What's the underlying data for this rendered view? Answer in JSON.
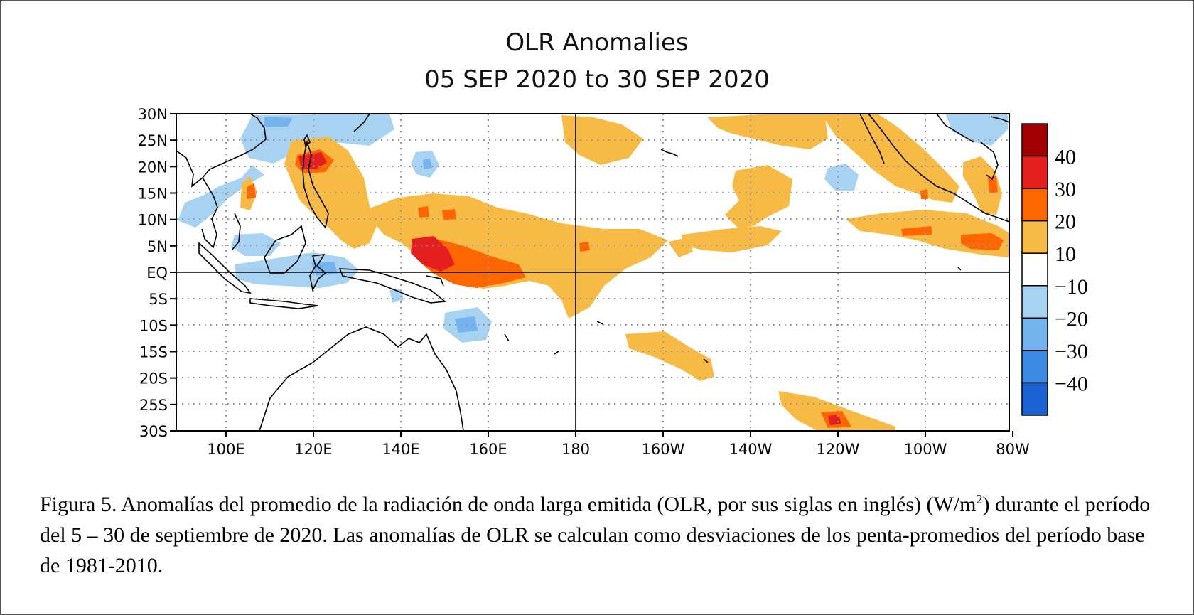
{
  "title": {
    "line1": "OLR Anomalies",
    "line2": "05 SEP 2020 to 30 SEP 2020"
  },
  "axes": {
    "lat_labels": [
      "30N",
      "25N",
      "20N",
      "15N",
      "10N",
      "5N",
      "EQ",
      "5S",
      "10S",
      "15S",
      "20S",
      "25S",
      "30S"
    ],
    "lon_labels": [
      "100E",
      "120E",
      "140E",
      "160E",
      "180",
      "160W",
      "140W",
      "120W",
      "100W",
      "80W"
    ]
  },
  "colorbar": {
    "levels": [
      {
        "range": [
          40,
          50
        ],
        "color": "#a00000"
      },
      {
        "range": [
          30,
          40
        ],
        "color": "#e51f1f"
      },
      {
        "range": [
          20,
          30
        ],
        "color": "#ff6600"
      },
      {
        "range": [
          10,
          20
        ],
        "color": "#f7bb45"
      },
      {
        "range": [
          -10,
          10
        ],
        "color": "#ffffff"
      },
      {
        "range": [
          -20,
          -10
        ],
        "color": "#a8d2f2"
      },
      {
        "range": [
          -30,
          -20
        ],
        "color": "#74b4ee"
      },
      {
        "range": [
          -40,
          -30
        ],
        "color": "#3d8ae6"
      },
      {
        "range": [
          -50,
          -40
        ],
        "color": "#1b62d4"
      }
    ],
    "labels": [
      "40",
      "30",
      "20",
      "10",
      "−10",
      "−20",
      "−30",
      "−40"
    ]
  },
  "caption": {
    "part1": "Figura 5. Anomalías del promedio de la radiación de onda larga emitida (OLR, por sus siglas en inglés) (W/m",
    "sup": "2",
    "part2": ") durante el período del 5 – 30 de septiembre de 2020.  Las anomalías de OLR se calculan como desviaciones de los penta-promedios del período base de 1981-2010."
  }
}
